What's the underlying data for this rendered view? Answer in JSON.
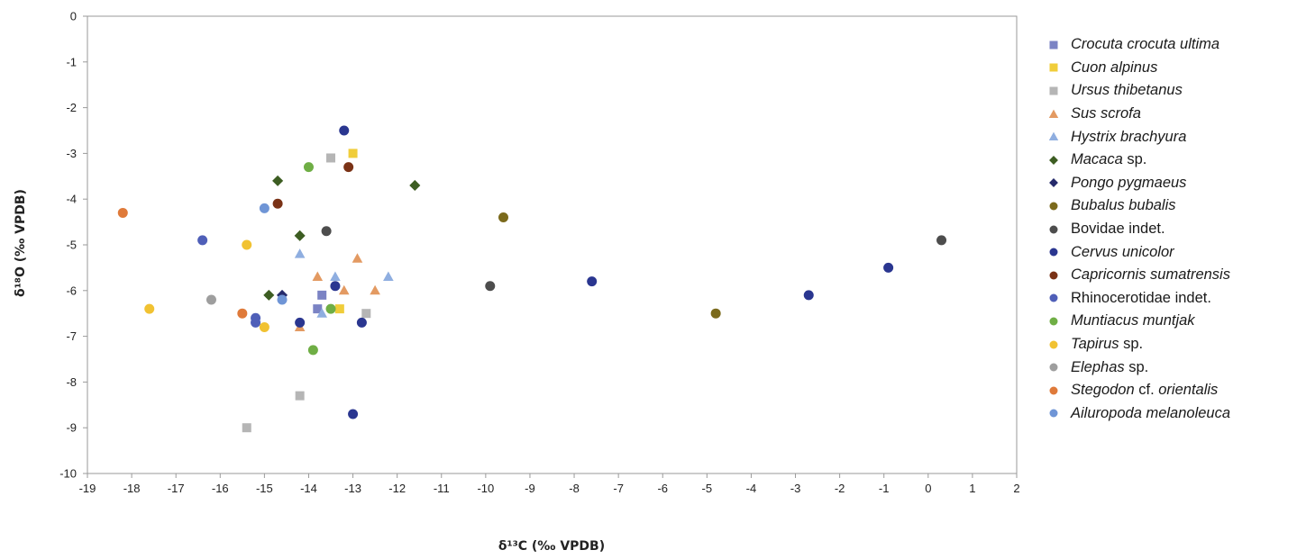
{
  "chart_data": {
    "type": "scatter",
    "xlabel": "δ¹³C (‰ VPDB)",
    "ylabel": "δ¹⁸O (‰ VPDB)",
    "xlim": [
      -19,
      2
    ],
    "ylim": [
      -10,
      0
    ],
    "x_ticks": [
      -19,
      -18,
      -17,
      -16,
      -15,
      -14,
      -13,
      -12,
      -11,
      -10,
      -9,
      -8,
      -7,
      -6,
      -5,
      -4,
      -3,
      -2,
      -1,
      0,
      1,
      2
    ],
    "y_ticks": [
      0,
      -1,
      -2,
      -3,
      -4,
      -5,
      -6,
      -7,
      -8,
      -9,
      -10
    ],
    "grid": false,
    "legend_position": "right",
    "series": [
      {
        "name": "Crocuta crocuta ultima",
        "name_italic": "Crocuta crocuta ultima",
        "name_plain": "",
        "marker": "square",
        "color": "#7b83c4",
        "points": [
          [
            -13.7,
            -6.1
          ],
          [
            -13.8,
            -6.4
          ]
        ]
      },
      {
        "name": "Cuon alpinus",
        "name_italic": "Cuon alpinus",
        "name_plain": "",
        "marker": "square",
        "color": "#f0cd3a",
        "points": [
          [
            -13.0,
            -3.0
          ],
          [
            -13.3,
            -6.4
          ]
        ]
      },
      {
        "name": "Ursus thibetanus",
        "name_italic": "Ursus thibetanus",
        "name_plain": "",
        "marker": "square",
        "color": "#b5b5b5",
        "points": [
          [
            -13.5,
            -3.1
          ],
          [
            -12.7,
            -6.5
          ],
          [
            -14.2,
            -8.3
          ],
          [
            -15.4,
            -9.0
          ]
        ]
      },
      {
        "name": "Sus scrofa",
        "name_italic": "Sus scrofa",
        "name_plain": "",
        "marker": "triangle",
        "color": "#e39a62",
        "points": [
          [
            -13.8,
            -5.7
          ],
          [
            -12.9,
            -5.3
          ],
          [
            -13.2,
            -6.0
          ],
          [
            -12.5,
            -6.0
          ],
          [
            -14.2,
            -6.8
          ]
        ]
      },
      {
        "name": "Hystrix brachyura",
        "name_italic": "Hystrix brachyura",
        "name_plain": "",
        "marker": "triangle",
        "color": "#8faee0",
        "points": [
          [
            -14.2,
            -5.2
          ],
          [
            -13.4,
            -5.7
          ],
          [
            -12.2,
            -5.7
          ],
          [
            -13.7,
            -6.5
          ]
        ]
      },
      {
        "name": "Macaca sp.",
        "name_italic": "Macaca",
        "name_plain": " sp.",
        "marker": "diamond",
        "color": "#3d5d22",
        "points": [
          [
            -14.7,
            -3.6
          ],
          [
            -11.6,
            -3.7
          ],
          [
            -14.2,
            -4.8
          ],
          [
            -14.9,
            -6.1
          ]
        ]
      },
      {
        "name": "Pongo pygmaeus",
        "name_italic": "Pongo pygmaeus",
        "name_plain": "",
        "marker": "diamond",
        "color": "#252a6b",
        "points": [
          [
            -14.6,
            -6.1
          ]
        ]
      },
      {
        "name": "Bubalus bubalis",
        "name_italic": "Bubalus bubalis",
        "name_plain": "",
        "marker": "circle",
        "color": "#7b6a1c",
        "points": [
          [
            -9.6,
            -4.4
          ],
          [
            -4.8,
            -6.5
          ]
        ]
      },
      {
        "name": "Bovidae indet.",
        "name_italic": "",
        "name_plain": "Bovidae indet.",
        "marker": "circle",
        "color": "#4d4d4d",
        "points": [
          [
            -13.6,
            -4.7
          ],
          [
            -9.9,
            -5.9
          ],
          [
            0.3,
            -4.9
          ]
        ]
      },
      {
        "name": "Cervus unicolor",
        "name_italic": "Cervus unicolor",
        "name_plain": "",
        "marker": "circle",
        "color": "#2a3690",
        "points": [
          [
            -13.2,
            -2.5
          ],
          [
            -13.4,
            -5.9
          ],
          [
            -7.6,
            -5.8
          ],
          [
            -2.7,
            -6.1
          ],
          [
            -0.9,
            -5.5
          ],
          [
            -14.2,
            -6.7
          ],
          [
            -12.8,
            -6.7
          ],
          [
            -13.0,
            -8.7
          ]
        ]
      },
      {
        "name": "Capricornis sumatrensis",
        "name_italic": "Capricornis sumatrensis",
        "name_plain": "",
        "marker": "circle",
        "color": "#7a3216",
        "points": [
          [
            -13.1,
            -3.3
          ],
          [
            -14.7,
            -4.1
          ]
        ]
      },
      {
        "name": "Rhinocerotidae indet.",
        "name_italic": "",
        "name_plain": "Rhinocerotidae indet.",
        "marker": "circle",
        "color": "#4f5fb8",
        "points": [
          [
            -16.4,
            -4.9
          ],
          [
            -15.2,
            -6.6
          ],
          [
            -15.2,
            -6.7
          ]
        ]
      },
      {
        "name": "Muntiacus muntjak",
        "name_italic": "Muntiacus muntjak",
        "name_plain": "",
        "marker": "circle",
        "color": "#6fae45",
        "points": [
          [
            -14.0,
            -3.3
          ],
          [
            -13.5,
            -6.4
          ],
          [
            -13.9,
            -7.3
          ]
        ]
      },
      {
        "name": "Tapirus sp.",
        "name_italic": "Tapirus",
        "name_plain": " sp.",
        "marker": "circle",
        "color": "#f1c232",
        "points": [
          [
            -15.4,
            -5.0
          ],
          [
            -17.6,
            -6.4
          ],
          [
            -15.0,
            -6.8
          ]
        ]
      },
      {
        "name": "Elephas sp.",
        "name_italic": "Elephas",
        "name_plain": " sp.",
        "marker": "circle",
        "color": "#9e9e9e",
        "points": [
          [
            -16.2,
            -6.2
          ]
        ]
      },
      {
        "name": "Stegodon cf. orientalis",
        "name_italic": "Stegodon",
        "name_plain": " cf. ",
        "name_italic2": "orientalis",
        "marker": "circle",
        "color": "#df7a3a",
        "points": [
          [
            -18.2,
            -4.3
          ],
          [
            -15.5,
            -6.5
          ]
        ]
      },
      {
        "name": "Ailuropoda melanoleuca",
        "name_italic": "Ailuropoda melanoleuca",
        "name_plain": "",
        "marker": "circle",
        "color": "#6f95d6",
        "points": [
          [
            -15.0,
            -4.2
          ],
          [
            -14.6,
            -6.2
          ]
        ]
      }
    ]
  }
}
